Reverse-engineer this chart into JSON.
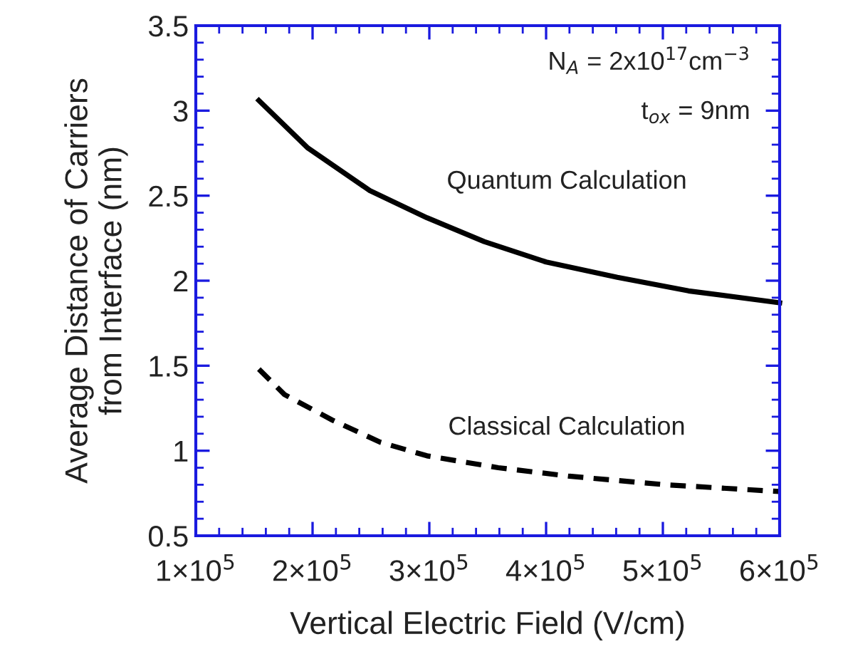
{
  "chart_data": {
    "type": "line",
    "xlabel": "Vertical Electric Field (V/cm)",
    "ylabel": "Average Distance of Carriers\nfrom Interface (nm)",
    "series": [
      {
        "color": "#000000",
        "line_style": "solid",
        "x": [
          154000,
          196000,
          249000,
          298000,
          347000,
          400000,
          461000,
          522000,
          600000
        ],
        "values": [
          3.06,
          2.78,
          2.53,
          2.37,
          2.23,
          2.11,
          2.02,
          1.94,
          1.87
        ]
      },
      {
        "color": "#000000",
        "line_style": "dashed",
        "x": [
          154000,
          176000,
          217000,
          258000,
          298000,
          359000,
          420000,
          502000,
          600000
        ],
        "values": [
          1.48,
          1.33,
          1.18,
          1.05,
          0.97,
          0.9,
          0.85,
          0.8,
          0.76
        ]
      }
    ],
    "xlim": [
      100000,
      600000
    ],
    "xticks": [
      {
        "value": 100000,
        "label": "1×10$^{5}$"
      },
      {
        "value": 200000,
        "label": "2×10$^{5}$"
      },
      {
        "value": 300000,
        "label": "3×10$^{5}$"
      },
      {
        "value": 400000,
        "label": "4×10$^{5}$"
      },
      {
        "value": 500000,
        "label": "5×10$^{5}$"
      },
      {
        "value": 600000,
        "label": "6×10$^{5}$"
      }
    ],
    "ylim": [
      0.5,
      3.5
    ],
    "yticks": [
      {
        "value": 0.5,
        "label": "0.5"
      },
      {
        "value": 1,
        "label": "1"
      },
      {
        "value": 1.5,
        "label": "1.5"
      },
      {
        "value": 2,
        "label": "2"
      },
      {
        "value": 2.5,
        "label": "2.5"
      },
      {
        "value": 3,
        "label": "3"
      },
      {
        "value": 3.5,
        "label": "3.5"
      }
    ],
    "grid": false,
    "legend": false,
    "marker": "none",
    "annotations": [
      "N$_{A}$ = 2x10$^{17}$cm$^{−3}$",
      "t$_{ox}$ = 9nm",
      {
        "text": "Quantum Calculation",
        "x": 298000,
        "y": 2.37
      },
      {
        "text": "Classical Calculation",
        "x": 350000,
        "y": 0.9
      }
    ]
  }
}
